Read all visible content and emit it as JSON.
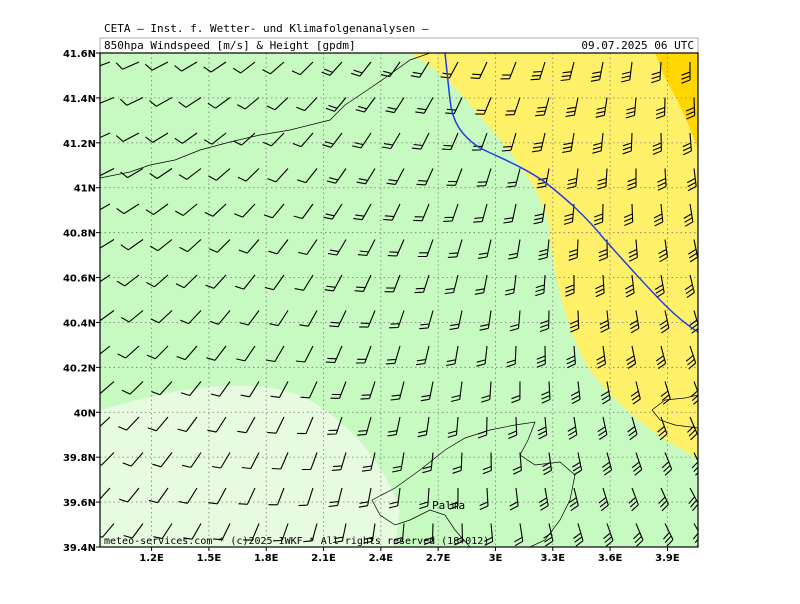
{
  "header": {
    "institute": "CETA — Inst. f. Wetter- und Klimafolgenanalysen —",
    "title": "850hpa Windspeed [m/s] & Height [gpdm]",
    "date": "09.07.2025 06 UTC"
  },
  "map": {
    "xlim": [
      0.93,
      4.06
    ],
    "ylim": [
      39.4,
      41.6
    ],
    "xticks": [
      {
        "value": 1.2,
        "label": "1.2E"
      },
      {
        "value": 1.5,
        "label": "1.5E"
      },
      {
        "value": 1.8,
        "label": "1.8E"
      },
      {
        "value": 2.1,
        "label": "2.1E"
      },
      {
        "value": 2.4,
        "label": "2.4E"
      },
      {
        "value": 2.7,
        "label": "2.7E"
      },
      {
        "value": 3,
        "label": "3E"
      },
      {
        "value": 3.3,
        "label": "3.3E"
      },
      {
        "value": 3.6,
        "label": "3.6E"
      },
      {
        "value": 3.9,
        "label": "3.9E"
      }
    ],
    "yticks": [
      {
        "value": 39.4,
        "label": "39.4N"
      },
      {
        "value": 39.6,
        "label": "39.6N"
      },
      {
        "value": 39.8,
        "label": "39.8N"
      },
      {
        "value": 40,
        "label": "40N"
      },
      {
        "value": 40.2,
        "label": "40.2N"
      },
      {
        "value": 40.4,
        "label": "40.4N"
      },
      {
        "value": 40.6,
        "label": "40.6N"
      },
      {
        "value": 40.8,
        "label": "40.8N"
      },
      {
        "value": 41,
        "label": "41N"
      },
      {
        "value": 41.2,
        "label": "41.2N"
      },
      {
        "value": 41.4,
        "label": "41.4N"
      },
      {
        "value": 41.6,
        "label": "41.6N"
      }
    ],
    "grid": true,
    "place_label": "Palma"
  },
  "footer": "meteo-services.com * (c)2025 IWKF * All rights reserved (18+012)"
}
